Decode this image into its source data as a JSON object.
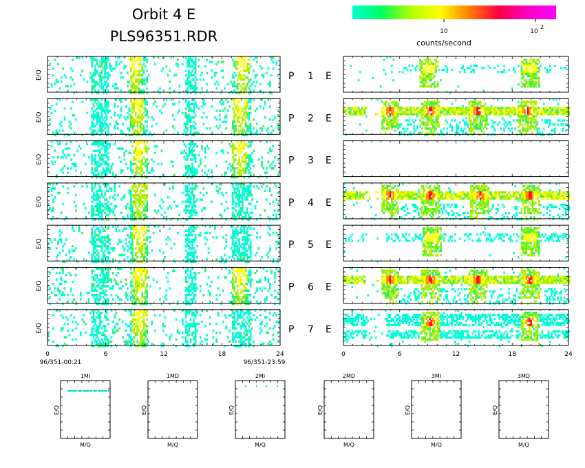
{
  "title_line1": "Orbit 4 E",
  "title_line2": "PLS96351.RDR",
  "colorbar": {
    "label": "counts/second",
    "tick_10": "10",
    "tick_100": "10",
    "tick_100_exp": "2",
    "stops": [
      "#00ffd0",
      "#00ff60",
      "#b0ff00",
      "#ffff00",
      "#ff8000",
      "#ff0040",
      "#ff00c0",
      "#ff00ff"
    ]
  },
  "chart_data": {
    "type": "heatmap",
    "x_unit": "hour of day 96/351",
    "xlim": [
      0,
      24
    ],
    "x_ticks": [
      "0",
      "6",
      "12",
      "18",
      "24"
    ],
    "left_time_start": "96/351-00:21",
    "left_time_end": "96/351-23:59",
    "ylabel": "E/Q",
    "activity_windows_hours": [
      [
        4.5,
        6.2
      ],
      [
        8.4,
        10.2
      ],
      [
        14.1,
        15.3
      ],
      [
        19.0,
        21.0
      ]
    ],
    "left_panels": [
      {
        "label": "P",
        "num": "1",
        "peak_hours": [
          9.0,
          20.0
        ],
        "peak_color": "red"
      },
      {
        "label": "P",
        "num": "2",
        "peak_hours": [
          9.2,
          19.8
        ],
        "peak_color": "yellow"
      },
      {
        "label": "P",
        "num": "3",
        "peak_hours": [
          9.4,
          19.8
        ],
        "peak_color": "yellow"
      },
      {
        "label": "P",
        "num": "4",
        "peak_hours": [
          9.4
        ],
        "peak_color": "green"
      },
      {
        "label": "P",
        "num": "5",
        "peak_hours": [
          9.4
        ],
        "peak_color": "yellow"
      },
      {
        "label": "P",
        "num": "6",
        "peak_hours": [
          9.4,
          19.8
        ],
        "peak_color": "yellow"
      },
      {
        "label": "P",
        "num": "7",
        "peak_hours": [
          9.4
        ],
        "peak_color": "yellow"
      }
    ],
    "right_panels": [
      {
        "label": "E",
        "band": "sparse",
        "peak_hours": [
          9.0,
          19.8
        ]
      },
      {
        "label": "E",
        "band": "strong",
        "peak_hours": [
          4.9,
          9.2,
          14.2,
          19.5
        ]
      },
      {
        "label": "E",
        "band": "empty",
        "peak_hours": []
      },
      {
        "label": "E",
        "band": "strong",
        "peak_hours": [
          4.9,
          9.2,
          14.5,
          19.8
        ]
      },
      {
        "label": "E",
        "band": "weak",
        "peak_hours": [
          9.4,
          19.8
        ]
      },
      {
        "label": "E",
        "band": "strong",
        "peak_hours": [
          4.9,
          9.2,
          14.2,
          19.8
        ]
      },
      {
        "label": "E",
        "band": "medium",
        "peak_hours": [
          9.2,
          19.8
        ]
      }
    ]
  },
  "bottom_panels": [
    {
      "title": "1MI",
      "xlabel": "M/Q",
      "ylabel": "E/Q",
      "has_line": true
    },
    {
      "title": "1MD",
      "xlabel": "M/Q",
      "ylabel": "E/Q",
      "has_line": false
    },
    {
      "title": "2MI",
      "xlabel": "M/Q",
      "ylabel": "E/Q",
      "has_line": "dots"
    },
    {
      "title": "2MD",
      "xlabel": "M/Q",
      "ylabel": "E/Q",
      "has_line": false
    },
    {
      "title": "3MI",
      "xlabel": "M/Q",
      "ylabel": "E/Q",
      "has_line": false
    },
    {
      "title": "3MD",
      "xlabel": "M/Q",
      "ylabel": "E/Q",
      "has_line": false
    }
  ]
}
